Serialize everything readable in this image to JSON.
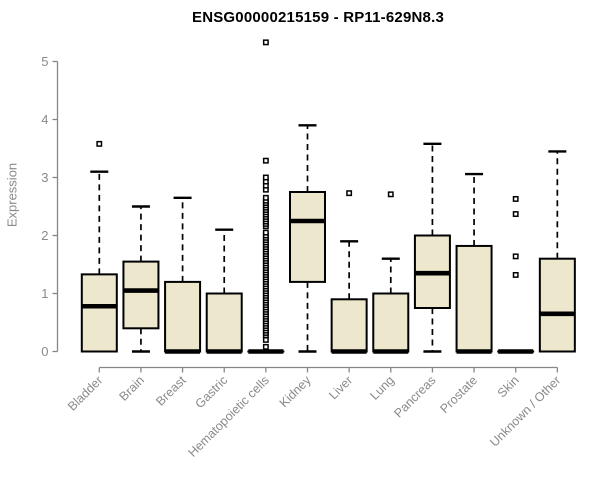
{
  "figure": {
    "title": "ENSG00000215159 - RP11-629N8.3",
    "ylabel": "Expression"
  },
  "colors": {
    "background": "#ffffff",
    "box_fill": "#ede8cd",
    "box_stroke": "#000000",
    "median_color": "#000000",
    "whisker_color": "#000000",
    "outlier_stroke": "#000000",
    "axis_line": "#878787",
    "axis_text": "#8a8a8a",
    "title_text": "#000000"
  },
  "chart_data": {
    "type": "boxplot",
    "title": "ENSG00000215159 - RP11-629N8.3",
    "xlabel": "",
    "ylabel": "Expression",
    "ylim": [
      0,
      5.4
    ],
    "yticks": [
      0,
      1,
      2,
      3,
      4,
      5
    ],
    "grid": false,
    "legend": "none",
    "categories": [
      "Bladder",
      "Brain",
      "Breast",
      "Gastric",
      "Hematopoietic cells",
      "Kidney",
      "Liver",
      "Lung",
      "Pancreas",
      "Prostate",
      "Skin",
      "Unknown / Other"
    ],
    "boxes": [
      {
        "label": "Bladder",
        "whisker_low": 0,
        "q1": 0,
        "median": 0.78,
        "q3": 1.33,
        "whisker_high": 3.1,
        "outliers": [
          3.58
        ]
      },
      {
        "label": "Brain",
        "whisker_low": 0,
        "q1": 0.4,
        "median": 1.05,
        "q3": 1.55,
        "whisker_high": 2.5,
        "outliers": []
      },
      {
        "label": "Breast",
        "whisker_low": 0,
        "q1": 0,
        "median": 0,
        "q3": 1.2,
        "whisker_high": 2.65,
        "outliers": []
      },
      {
        "label": "Gastric",
        "whisker_low": 0,
        "q1": 0,
        "median": 0,
        "q3": 1.0,
        "whisker_high": 2.1,
        "outliers": []
      },
      {
        "label": "Hematopoietic cells",
        "whisker_low": 0,
        "q1": 0,
        "median": 0,
        "q3": 0,
        "whisker_high": 0,
        "outliers": [
          0.08,
          0.2,
          0.28,
          0.32,
          0.36,
          0.4,
          0.44,
          0.48,
          0.52,
          0.56,
          0.6,
          0.64,
          0.68,
          0.72,
          0.76,
          0.8,
          0.84,
          0.88,
          0.92,
          0.96,
          1.0,
          1.04,
          1.08,
          1.12,
          1.16,
          1.2,
          1.24,
          1.28,
          1.32,
          1.36,
          1.4,
          1.44,
          1.48,
          1.52,
          1.56,
          1.6,
          1.64,
          1.68,
          1.72,
          1.76,
          1.8,
          1.84,
          1.88,
          1.92,
          1.96,
          2.0,
          2.05,
          2.16,
          2.2,
          2.24,
          2.28,
          2.32,
          2.36,
          2.4,
          2.44,
          2.48,
          2.52,
          2.56,
          2.6,
          2.65,
          2.79,
          2.86,
          2.93,
          3.0,
          3.29,
          5.33
        ]
      },
      {
        "label": "Kidney",
        "whisker_low": 0,
        "q1": 1.2,
        "median": 2.25,
        "q3": 2.75,
        "whisker_high": 3.9,
        "outliers": []
      },
      {
        "label": "Liver",
        "whisker_low": 0,
        "q1": 0,
        "median": 0,
        "q3": 0.9,
        "whisker_high": 1.9,
        "outliers": [
          2.73
        ]
      },
      {
        "label": "Lung",
        "whisker_low": 0,
        "q1": 0,
        "median": 0,
        "q3": 1.0,
        "whisker_high": 1.6,
        "outliers": [
          2.71
        ]
      },
      {
        "label": "Pancreas",
        "whisker_low": 0,
        "q1": 0.75,
        "median": 1.35,
        "q3": 2.0,
        "whisker_high": 3.58,
        "outliers": []
      },
      {
        "label": "Prostate",
        "whisker_low": 0,
        "q1": 0,
        "median": 0,
        "q3": 1.82,
        "whisker_high": 3.06,
        "outliers": []
      },
      {
        "label": "Skin",
        "whisker_low": 0,
        "q1": 0,
        "median": 0,
        "q3": 0,
        "whisker_high": 0,
        "outliers": [
          1.32,
          1.64,
          2.37,
          2.63
        ]
      },
      {
        "label": "Unknown / Other",
        "whisker_low": 0,
        "q1": 0,
        "median": 0.65,
        "q3": 1.6,
        "whisker_high": 3.45,
        "outliers": []
      }
    ]
  }
}
